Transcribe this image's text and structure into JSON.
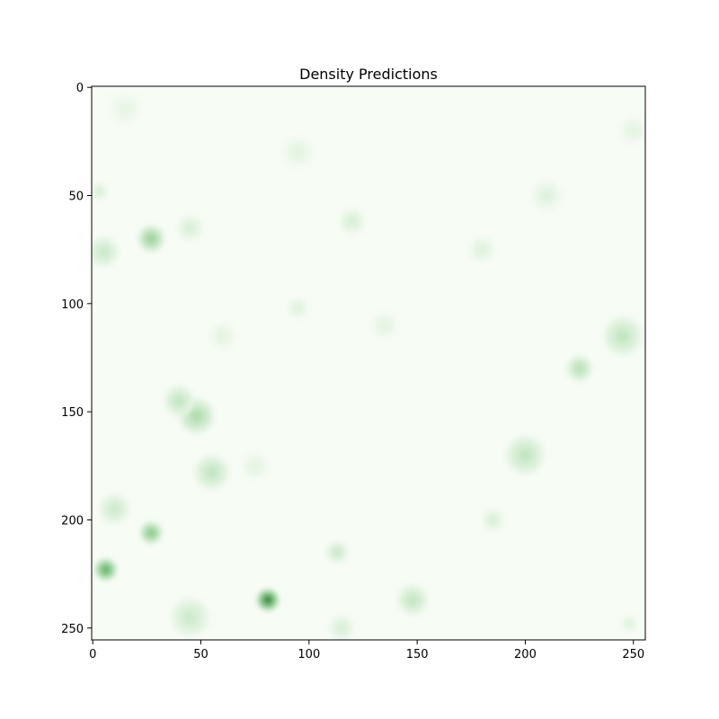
{
  "chart_data": {
    "type": "heatmap",
    "title": "Density Predictions",
    "colormap": "Greens",
    "colormap_low": "#f7fcf5",
    "colormap_high": "#00441b",
    "grid": false,
    "xlim": [
      -0.5,
      255.5
    ],
    "ylim": [
      255.5,
      -0.5
    ],
    "x_ticks": [
      0,
      50,
      100,
      150,
      200,
      250
    ],
    "y_ticks": [
      0,
      50,
      100,
      150,
      200,
      250
    ],
    "x_tick_labels": [
      "0",
      "50",
      "100",
      "150",
      "200",
      "250"
    ],
    "y_tick_labels": [
      "0",
      "50",
      "100",
      "150",
      "200",
      "250"
    ],
    "grid_size": [
      256,
      256
    ],
    "blobs": [
      {
        "x": 81,
        "y": 237,
        "value": 1.0,
        "radius": 5
      },
      {
        "x": 6,
        "y": 223,
        "value": 0.75,
        "radius": 5
      },
      {
        "x": 27,
        "y": 206,
        "value": 0.55,
        "radius": 5
      },
      {
        "x": 27,
        "y": 70,
        "value": 0.45,
        "radius": 6
      },
      {
        "x": 48,
        "y": 152,
        "value": 0.35,
        "radius": 8
      },
      {
        "x": 40,
        "y": 145,
        "value": 0.25,
        "radius": 7
      },
      {
        "x": 55,
        "y": 178,
        "value": 0.25,
        "radius": 8
      },
      {
        "x": 5,
        "y": 76,
        "value": 0.22,
        "radius": 7
      },
      {
        "x": 10,
        "y": 195,
        "value": 0.2,
        "radius": 7
      },
      {
        "x": 225,
        "y": 130,
        "value": 0.3,
        "radius": 6
      },
      {
        "x": 200,
        "y": 170,
        "value": 0.25,
        "radius": 9
      },
      {
        "x": 245,
        "y": 115,
        "value": 0.25,
        "radius": 9
      },
      {
        "x": 148,
        "y": 237,
        "value": 0.25,
        "radius": 7
      },
      {
        "x": 113,
        "y": 215,
        "value": 0.22,
        "radius": 5
      },
      {
        "x": 115,
        "y": 250,
        "value": 0.15,
        "radius": 6
      },
      {
        "x": 45,
        "y": 245,
        "value": 0.2,
        "radius": 9
      },
      {
        "x": 45,
        "y": 65,
        "value": 0.15,
        "radius": 6
      },
      {
        "x": 120,
        "y": 62,
        "value": 0.15,
        "radius": 6
      },
      {
        "x": 95,
        "y": 102,
        "value": 0.12,
        "radius": 5
      },
      {
        "x": 135,
        "y": 110,
        "value": 0.1,
        "radius": 6
      },
      {
        "x": 185,
        "y": 200,
        "value": 0.15,
        "radius": 5
      },
      {
        "x": 3,
        "y": 48,
        "value": 0.15,
        "radius": 4
      },
      {
        "x": 210,
        "y": 50,
        "value": 0.12,
        "radius": 7
      },
      {
        "x": 180,
        "y": 75,
        "value": 0.12,
        "radius": 6
      },
      {
        "x": 95,
        "y": 30,
        "value": 0.1,
        "radius": 7
      },
      {
        "x": 250,
        "y": 20,
        "value": 0.1,
        "radius": 6
      },
      {
        "x": 75,
        "y": 175,
        "value": 0.1,
        "radius": 6
      },
      {
        "x": 248,
        "y": 248,
        "value": 0.12,
        "radius": 4
      },
      {
        "x": 15,
        "y": 10,
        "value": 0.08,
        "radius": 7
      },
      {
        "x": 60,
        "y": 115,
        "value": 0.1,
        "radius": 6
      }
    ]
  }
}
